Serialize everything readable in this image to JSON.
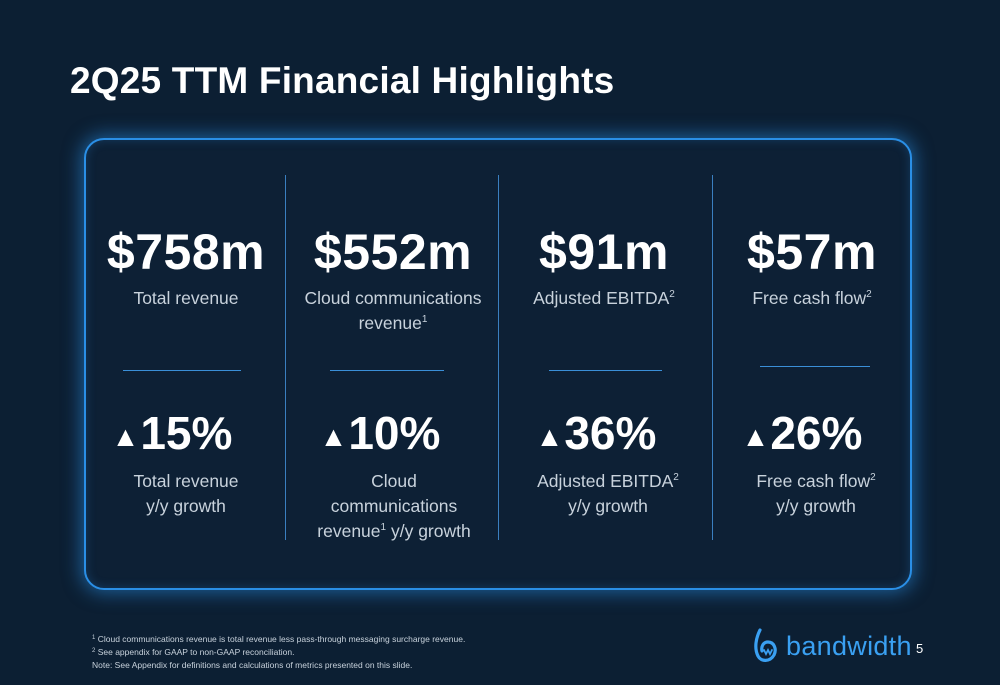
{
  "title": "2Q25 TTM Financial Highlights",
  "metrics": [
    {
      "value": "$758m",
      "label": "Total revenue",
      "label_sup": "",
      "growth": "15%",
      "growth_line1": "Total revenue",
      "growth_sup": "",
      "growth_line2": "y/y growth"
    },
    {
      "value": "$552m",
      "label": "Cloud communications revenue",
      "label_sup": "1",
      "growth": "10%",
      "growth_line1": "Cloud communications",
      "growth_sup": "1",
      "growth_line2": "y/y growth"
    },
    {
      "value": "$91m",
      "label": "Adjusted EBITDA",
      "label_sup": "2",
      "growth": "36%",
      "growth_line1": "Adjusted EBITDA",
      "growth_sup": "2",
      "growth_line2": "y/y growth"
    },
    {
      "value": "$57m",
      "label": "Free cash flow",
      "label_sup": "2",
      "growth": "26%",
      "growth_line1": "Free cash flow",
      "growth_sup": "2",
      "growth_line2": "y/y growth"
    }
  ],
  "col2_label_line1": "Cloud communications",
  "col2_label_line2": "revenue",
  "col2_growth_line2_prefix": "revenue",
  "up_symbol": "▲",
  "footnotes": [
    {
      "sup": "1",
      "text": "Cloud communications revenue is total revenue less pass-through messaging surcharge revenue."
    },
    {
      "sup": "2",
      "text": "See appendix for GAAP to non-GAAP reconciliation."
    },
    {
      "sup": "",
      "text": "Note: See Appendix for definitions and calculations of metrics presented on this slide."
    }
  ],
  "logo_text": "bandwidth",
  "page_number": "5",
  "colors": {
    "background": "#0c1f33",
    "accent": "#2a8fe6",
    "logo": "#3aa0f2"
  }
}
